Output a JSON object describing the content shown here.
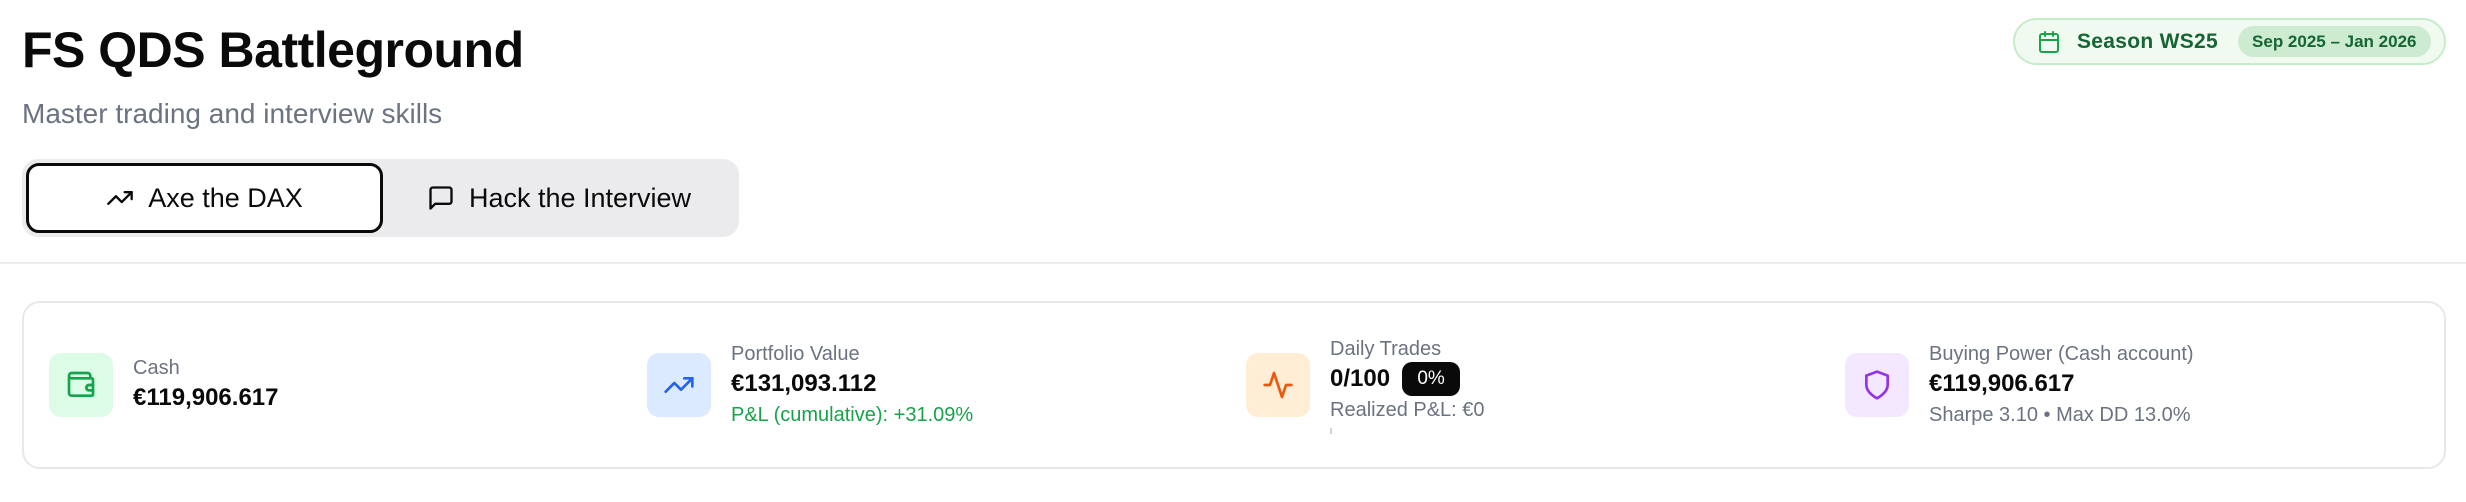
{
  "header": {
    "title": "FS QDS Battleground",
    "subtitle": "Master trading and interview skills"
  },
  "tabs": [
    {
      "label": "Axe the DAX",
      "icon": "trending-up-icon",
      "active": true
    },
    {
      "label": "Hack the Interview",
      "icon": "message-square-icon",
      "active": false
    }
  ],
  "season": {
    "label": "Season WS25",
    "range": "Sep 2025 – Jan 2026",
    "icon": "calendar-icon"
  },
  "stats": {
    "cash": {
      "label": "Cash",
      "value": "€119,906.617",
      "icon": "wallet-icon",
      "color": "#16a34a"
    },
    "portfolio": {
      "label": "Portfolio Value",
      "value": "€131,093.112",
      "sub": "P&L (cumulative): +31.09%",
      "icon": "trending-up-icon",
      "color": "#2563eb"
    },
    "trades": {
      "label": "Daily Trades",
      "value": "0/100",
      "badge": "0%",
      "sub": "Realized P&L: €0",
      "icon": "activity-icon",
      "color": "#ea580c",
      "progress": 0
    },
    "buying_power": {
      "label": "Buying Power (Cash account)",
      "value": "€119,906.617",
      "sub": "Sharpe 3.10 • Max DD 13.0%",
      "icon": "shield-icon",
      "color": "#9333ea"
    }
  }
}
